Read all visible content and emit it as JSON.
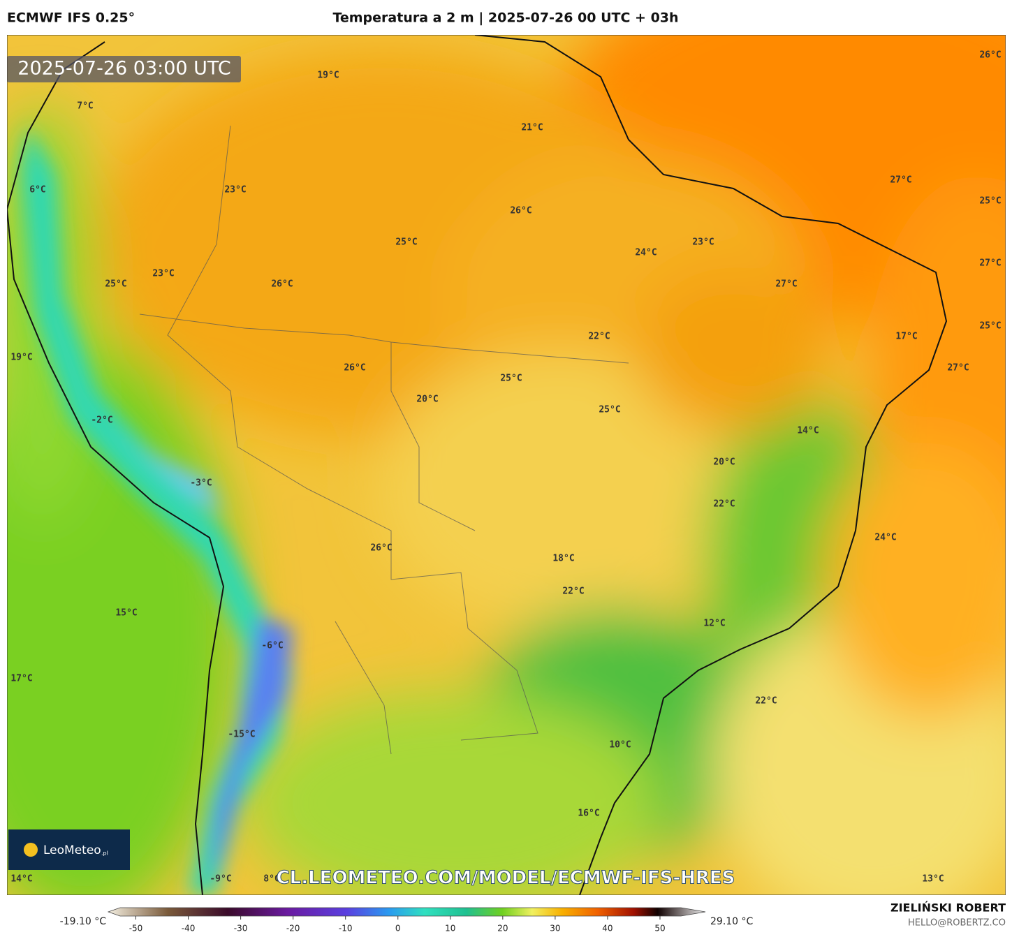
{
  "header": {
    "model": "ECMWF IFS 0.25°",
    "title": "Temperatura a 2 m | 2025-07-26 00 UTC + 03h"
  },
  "timestamp": "2025-07-26 03:00 UTC",
  "map_labels": [
    "19°C",
    "7°C",
    "21°C",
    "6°C",
    "23°C",
    "27°C",
    "26°C",
    "26°C",
    "25°C",
    "25°C",
    "24°C",
    "23°C",
    "27°C",
    "23°C",
    "25°C",
    "26°C",
    "27°C",
    "25°C",
    "22°C",
    "17°C",
    "19°C",
    "26°C",
    "27°C",
    "25°C",
    "20°C",
    "25°C",
    "-2°C",
    "14°C",
    "20°C",
    "-3°C",
    "22°C",
    "24°C",
    "26°C",
    "18°C",
    "22°C",
    "15°C",
    "12°C",
    "-6°C",
    "17°C",
    "22°C",
    "-15°C",
    "10°C",
    "16°C",
    "14°C",
    "-9°C",
    "8°C",
    "13°C"
  ],
  "watermark": "CL.LEOMETEO.COM/MODEL/ECMWF-IFS-HRES",
  "logo": {
    "name": "LeoMeteo",
    "suffix": ".pl"
  },
  "colorbar": {
    "min_label": "-19.10 °C",
    "max_label": "29.10 °C",
    "lim": [
      -53,
      54
    ],
    "ticks": [
      -50,
      -40,
      -30,
      -20,
      -10,
      0,
      10,
      20,
      30,
      40,
      50
    ]
  },
  "footer": {
    "author": "ZIELIŃSKI ROBERT",
    "contact": "HELLO@ROBERTZ.CO"
  }
}
